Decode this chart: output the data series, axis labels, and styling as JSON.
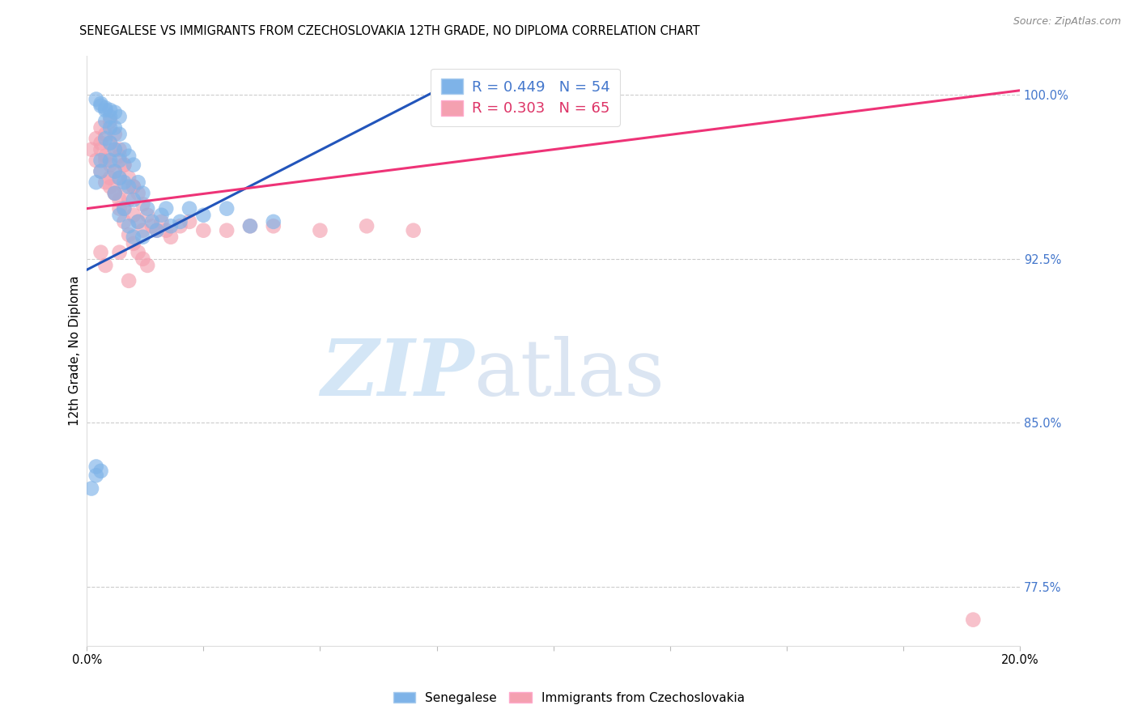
{
  "title": "SENEGALESE VS IMMIGRANTS FROM CZECHOSLOVAKIA 12TH GRADE, NO DIPLOMA CORRELATION CHART",
  "source": "Source: ZipAtlas.com",
  "ylabel": "12th Grade, No Diploma",
  "legend_blue_label": "R = 0.449   N = 54",
  "legend_pink_label": "R = 0.303   N = 65",
  "legend_series": [
    "Senegalese",
    "Immigrants from Czechoslovakia"
  ],
  "blue_color": "#7EB3E8",
  "pink_color": "#F4A0B0",
  "blue_line_color": "#2255BB",
  "pink_line_color": "#EE3377",
  "xmin": 0.0,
  "xmax": 0.2,
  "ymin": 0.748,
  "ymax": 1.018,
  "ytick_vals": [
    0.775,
    0.85,
    0.925,
    1.0
  ],
  "ytick_labels": [
    "77.5%",
    "85.0%",
    "92.5%",
    "100.0%"
  ],
  "blue_scatter_x": [
    0.001,
    0.002,
    0.002,
    0.003,
    0.003,
    0.003,
    0.004,
    0.004,
    0.004,
    0.005,
    0.005,
    0.005,
    0.005,
    0.006,
    0.006,
    0.006,
    0.006,
    0.007,
    0.007,
    0.007,
    0.007,
    0.008,
    0.008,
    0.008,
    0.009,
    0.009,
    0.009,
    0.01,
    0.01,
    0.01,
    0.011,
    0.011,
    0.012,
    0.012,
    0.013,
    0.014,
    0.015,
    0.016,
    0.017,
    0.018,
    0.02,
    0.022,
    0.025,
    0.03,
    0.035,
    0.04,
    0.002,
    0.003,
    0.004,
    0.005,
    0.006,
    0.007,
    0.002,
    0.003
  ],
  "blue_scatter_y": [
    0.82,
    0.83,
    0.96,
    0.97,
    0.965,
    0.995,
    0.98,
    0.988,
    0.993,
    0.985,
    0.99,
    0.978,
    0.97,
    0.985,
    0.975,
    0.965,
    0.955,
    0.982,
    0.97,
    0.962,
    0.945,
    0.975,
    0.96,
    0.948,
    0.972,
    0.958,
    0.94,
    0.968,
    0.952,
    0.935,
    0.96,
    0.942,
    0.955,
    0.935,
    0.948,
    0.942,
    0.938,
    0.945,
    0.948,
    0.94,
    0.942,
    0.948,
    0.945,
    0.948,
    0.94,
    0.942,
    0.998,
    0.996,
    0.994,
    0.993,
    0.992,
    0.99,
    0.826,
    0.828
  ],
  "pink_scatter_x": [
    0.001,
    0.002,
    0.002,
    0.003,
    0.003,
    0.003,
    0.004,
    0.004,
    0.004,
    0.005,
    0.005,
    0.005,
    0.006,
    0.006,
    0.006,
    0.007,
    0.007,
    0.007,
    0.008,
    0.008,
    0.008,
    0.009,
    0.009,
    0.01,
    0.01,
    0.011,
    0.011,
    0.012,
    0.012,
    0.013,
    0.014,
    0.015,
    0.016,
    0.017,
    0.018,
    0.02,
    0.022,
    0.025,
    0.03,
    0.035,
    0.04,
    0.05,
    0.06,
    0.07,
    0.003,
    0.004,
    0.005,
    0.006,
    0.007,
    0.008,
    0.009,
    0.01,
    0.011,
    0.012,
    0.013,
    0.005,
    0.006,
    0.007,
    0.008,
    0.01,
    0.003,
    0.004,
    0.007,
    0.009,
    0.19
  ],
  "pink_scatter_y": [
    0.975,
    0.98,
    0.97,
    0.985,
    0.975,
    0.965,
    0.982,
    0.972,
    0.96,
    0.978,
    0.968,
    0.958,
    0.975,
    0.965,
    0.955,
    0.972,
    0.962,
    0.952,
    0.968,
    0.958,
    0.948,
    0.962,
    0.952,
    0.958,
    0.945,
    0.955,
    0.942,
    0.95,
    0.938,
    0.945,
    0.94,
    0.938,
    0.942,
    0.938,
    0.935,
    0.94,
    0.942,
    0.938,
    0.938,
    0.94,
    0.94,
    0.938,
    0.94,
    0.938,
    0.978,
    0.97,
    0.962,
    0.955,
    0.948,
    0.942,
    0.936,
    0.932,
    0.928,
    0.925,
    0.922,
    0.988,
    0.982,
    0.975,
    0.968,
    0.958,
    0.928,
    0.922,
    0.928,
    0.915,
    0.76
  ],
  "blue_trend_x": [
    0.0,
    0.075
  ],
  "blue_trend_y": [
    0.92,
    1.002
  ],
  "pink_trend_x": [
    0.0,
    0.2
  ],
  "pink_trend_y": [
    0.948,
    1.002
  ]
}
